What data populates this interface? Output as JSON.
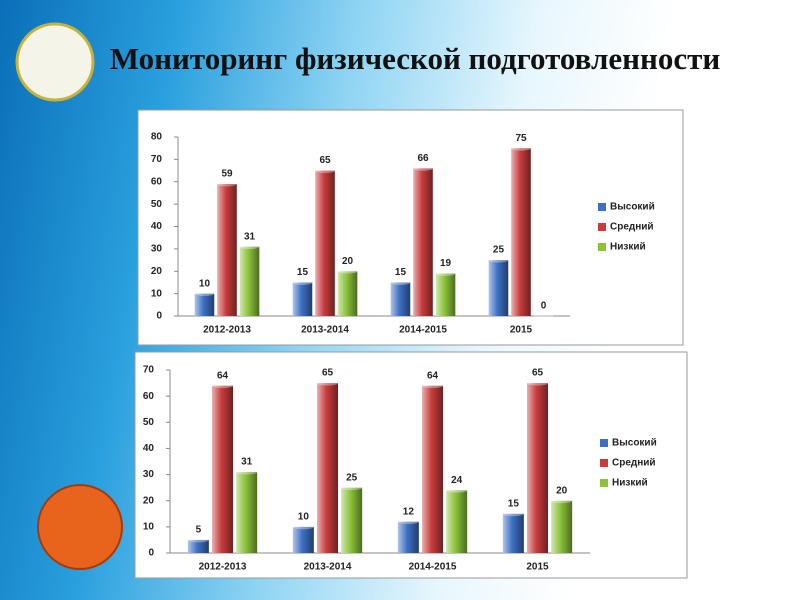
{
  "title": "Мониторинг  физической подготовленности",
  "chart_data": [
    {
      "type": "bar",
      "categories": [
        "2012-2013",
        "2013-2014",
        "2014-2015",
        "2015"
      ],
      "series": [
        {
          "name": "Высокий",
          "color": "#3d6fc4",
          "values": [
            10,
            15,
            15,
            25
          ]
        },
        {
          "name": "Средний",
          "color": "#c83c3c",
          "values": [
            59,
            65,
            66,
            75
          ]
        },
        {
          "name": "Низкий",
          "color": "#8bc23a",
          "values": [
            31,
            20,
            19,
            0
          ]
        }
      ],
      "ylim": [
        0,
        80
      ],
      "yticks": [
        0,
        10,
        20,
        30,
        40,
        50,
        60,
        70,
        80
      ],
      "legend": "right"
    },
    {
      "type": "bar",
      "categories": [
        "2012-2013",
        "2013-2014",
        "2014-2015",
        "2015"
      ],
      "series": [
        {
          "name": "Высокий",
          "color": "#3d6fc4",
          "values": [
            5,
            10,
            12,
            15
          ]
        },
        {
          "name": "Средний",
          "color": "#c83c3c",
          "values": [
            64,
            65,
            64,
            65
          ]
        },
        {
          "name": "Низкий",
          "color": "#8bc23a",
          "values": [
            31,
            25,
            24,
            20
          ]
        }
      ],
      "ylim": [
        0,
        70
      ],
      "yticks": [
        0,
        10,
        20,
        30,
        40,
        50,
        60,
        70
      ],
      "legend": "right"
    }
  ]
}
